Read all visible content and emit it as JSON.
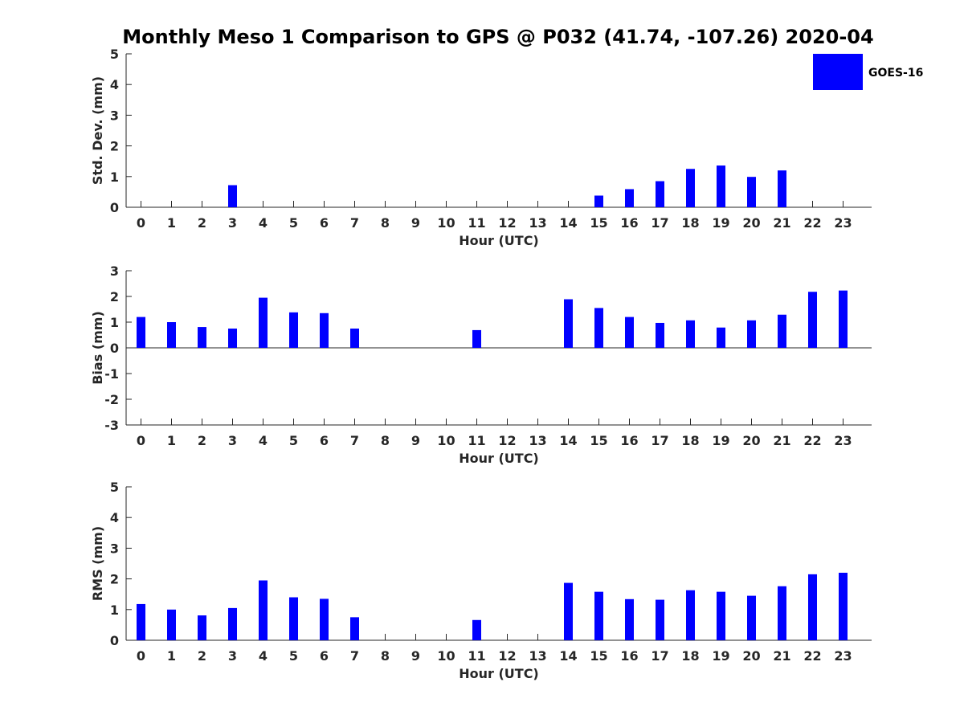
{
  "chart_data": {
    "title": "Monthly Meso 1 Comparison to GPS @ P032 (41.74, -107.26) 2020-04",
    "legend": {
      "label": "GOES-16",
      "placement": "top-right",
      "color": "#0000ff"
    },
    "bar_color": "#0000ff",
    "panels": [
      {
        "type": "bar",
        "ylabel": "Std. Dev. (mm)",
        "xlabel": "Hour (UTC)",
        "ylim": [
          0,
          5
        ],
        "yticks": [
          0,
          1,
          2,
          3,
          4,
          5
        ],
        "categories": [
          "0",
          "1",
          "2",
          "3",
          "4",
          "5",
          "6",
          "7",
          "8",
          "9",
          "10",
          "11",
          "12",
          "13",
          "14",
          "15",
          "16",
          "17",
          "18",
          "19",
          "20",
          "21",
          "22",
          "23"
        ],
        "values": [
          null,
          null,
          null,
          0.72,
          null,
          null,
          null,
          null,
          null,
          null,
          null,
          null,
          null,
          null,
          null,
          0.38,
          0.59,
          0.85,
          1.25,
          1.36,
          0.99,
          1.2,
          null,
          null
        ]
      },
      {
        "type": "bar",
        "ylabel": "Bias (mm)",
        "xlabel": "Hour (UTC)",
        "ylim": [
          -3,
          3
        ],
        "yticks": [
          -3,
          -2,
          -1,
          0,
          1,
          2,
          3
        ],
        "categories": [
          "0",
          "1",
          "2",
          "3",
          "4",
          "5",
          "6",
          "7",
          "8",
          "9",
          "10",
          "11",
          "12",
          "13",
          "14",
          "15",
          "16",
          "17",
          "18",
          "19",
          "20",
          "21",
          "22",
          "23"
        ],
        "values": [
          1.2,
          1.0,
          0.81,
          0.75,
          1.95,
          1.38,
          1.35,
          0.75,
          null,
          null,
          null,
          0.69,
          null,
          null,
          1.89,
          1.55,
          1.2,
          0.97,
          1.07,
          0.79,
          1.07,
          1.29,
          2.18,
          2.23
        ],
        "zero_line": true
      },
      {
        "type": "bar",
        "ylabel": "RMS (mm)",
        "xlabel": "Hour (UTC)",
        "ylim": [
          0,
          5
        ],
        "yticks": [
          0,
          1,
          2,
          3,
          4,
          5
        ],
        "categories": [
          "0",
          "1",
          "2",
          "3",
          "4",
          "5",
          "6",
          "7",
          "8",
          "9",
          "10",
          "11",
          "12",
          "13",
          "14",
          "15",
          "16",
          "17",
          "18",
          "19",
          "20",
          "21",
          "22",
          "23"
        ],
        "values": [
          1.18,
          1.0,
          0.81,
          1.05,
          1.95,
          1.4,
          1.35,
          0.75,
          null,
          null,
          null,
          0.66,
          null,
          null,
          1.87,
          1.58,
          1.34,
          1.32,
          1.63,
          1.58,
          1.45,
          1.76,
          2.15,
          2.2
        ]
      }
    ]
  }
}
